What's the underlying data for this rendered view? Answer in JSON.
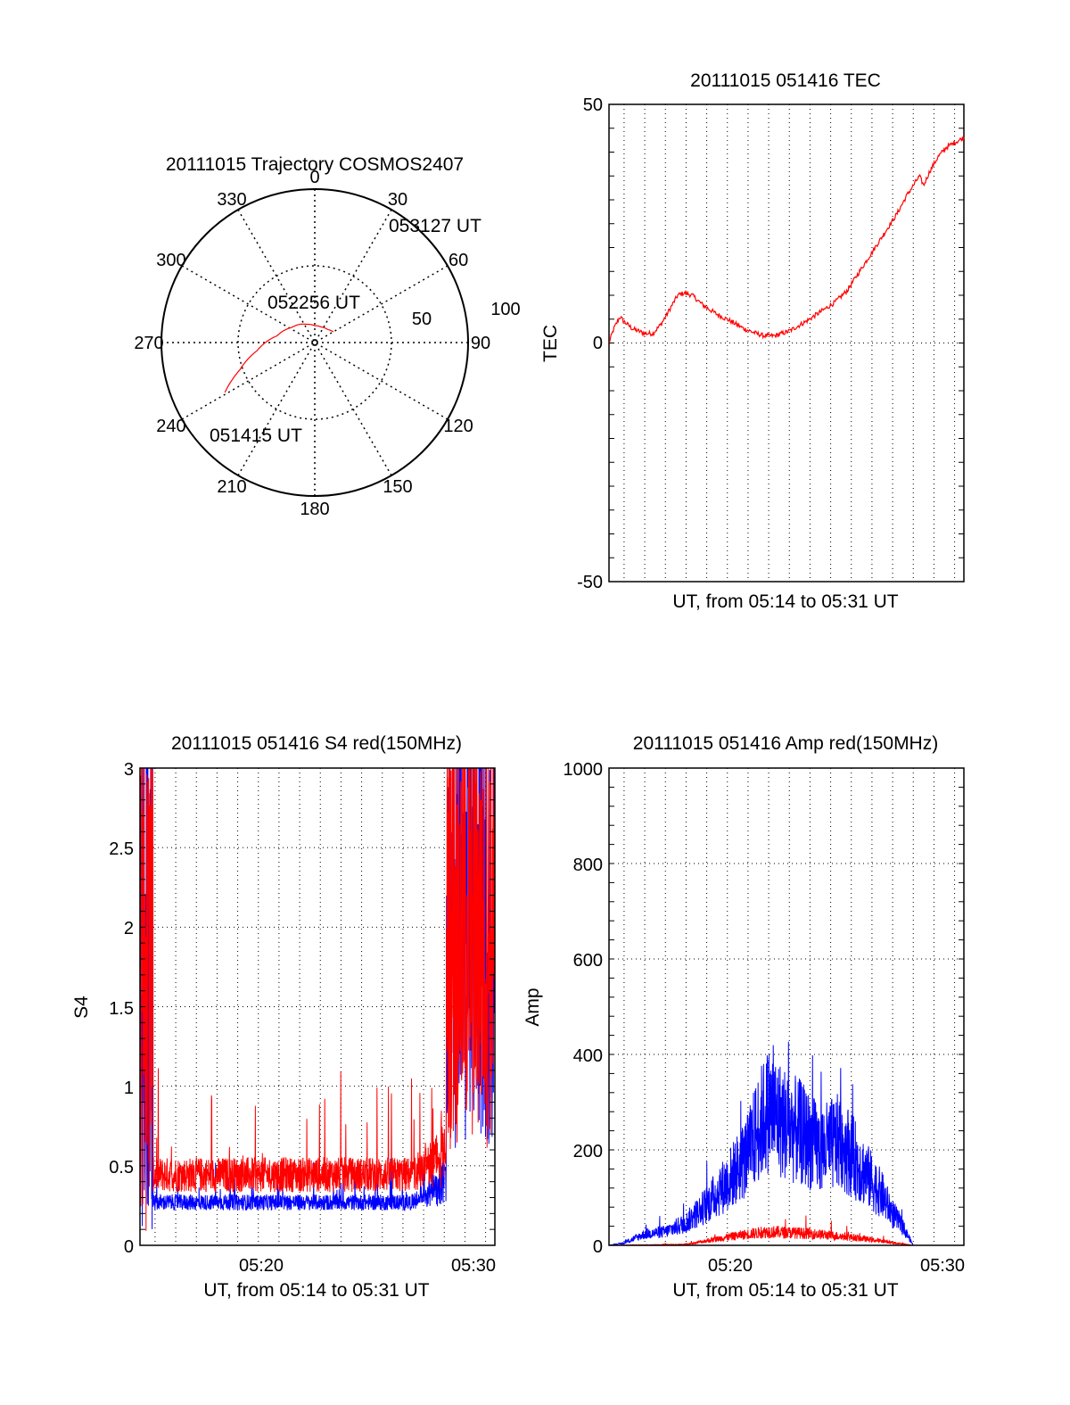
{
  "chart_data": [
    {
      "id": "trajectory",
      "type": "polar",
      "title": "20111015 Trajectory COSMOS2407",
      "azimuth_labels": [
        "0",
        "30",
        "60",
        "90",
        "120",
        "150",
        "180",
        "210",
        "240",
        "270",
        "300",
        "330"
      ],
      "radial_labels": [
        "50",
        "100"
      ],
      "trajectory": [
        {
          "az": 241,
          "r": 67
        },
        {
          "az": 250,
          "r": 52
        },
        {
          "az": 262,
          "r": 38
        },
        {
          "az": 280,
          "r": 25
        },
        {
          "az": 303,
          "r": 18
        },
        {
          "az": 336,
          "r": 13
        },
        {
          "az": 0,
          "r": 11
        },
        {
          "az": 22,
          "r": 11
        },
        {
          "az": 45,
          "r": 12
        },
        {
          "az": 60,
          "r": 14
        }
      ],
      "annotations": [
        {
          "text": "051415 UT",
          "az": 236,
          "r": 74
        },
        {
          "text": "052256 UT",
          "az": 335,
          "r": 28
        },
        {
          "text": "053127 UT",
          "az": 55,
          "r": 48
        }
      ],
      "trajectory_color": "#ff0000"
    },
    {
      "id": "tec",
      "type": "line",
      "title": "20111015 051416 TEC",
      "ylabel": "TEC",
      "xlabel": "UT, from 05:14 to 05:31 UT",
      "ylim": [
        -50,
        50
      ],
      "yticks": [
        "50",
        "0",
        "-50"
      ],
      "xlim_minutes": [
        14.27,
        31.45
      ],
      "grid": "dotted",
      "series": [
        {
          "color": "#ff0000",
          "points": [
            [
              14.27,
              0
            ],
            [
              14.5,
              3
            ],
            [
              14.8,
              5.5
            ],
            [
              15.0,
              4.5
            ],
            [
              15.4,
              3
            ],
            [
              16.0,
              2
            ],
            [
              16.4,
              2
            ],
            [
              16.8,
              4
            ],
            [
              17.2,
              7
            ],
            [
              17.6,
              10
            ],
            [
              17.9,
              10.5
            ],
            [
              18.3,
              10
            ],
            [
              18.8,
              8
            ],
            [
              19.5,
              6
            ],
            [
              20.2,
              4.5
            ],
            [
              20.8,
              3
            ],
            [
              21.4,
              2
            ],
            [
              21.8,
              1.5
            ],
            [
              22.3,
              1.5
            ],
            [
              23.0,
              2.5
            ],
            [
              23.8,
              4.5
            ],
            [
              24.5,
              6.5
            ],
            [
              25.2,
              8.5
            ],
            [
              25.8,
              11
            ],
            [
              26.4,
              15
            ],
            [
              27.0,
              19
            ],
            [
              27.6,
              23
            ],
            [
              28.2,
              27
            ],
            [
              28.7,
              31
            ],
            [
              29.0,
              33
            ],
            [
              29.3,
              35
            ],
            [
              29.5,
              33
            ],
            [
              29.8,
              36
            ],
            [
              30.2,
              39
            ],
            [
              30.6,
              41
            ],
            [
              31.0,
              42
            ],
            [
              31.45,
              43
            ]
          ]
        }
      ]
    },
    {
      "id": "s4",
      "type": "line",
      "title": "20111015 051416 S4 red(150MHz)",
      "ylabel": "S4",
      "xlabel": "UT, from 05:14 to 05:31 UT",
      "ylim": [
        0,
        3
      ],
      "yticks": [
        "0",
        "0.5",
        "1",
        "1.5",
        "2",
        "2.5",
        "3"
      ],
      "xticks": [
        "05:20",
        "05:30"
      ],
      "xlim_minutes": [
        14.27,
        31.45
      ],
      "grid": "dotted",
      "series": [
        {
          "color": "#0000ff",
          "level": 0.25,
          "spread": 0.1,
          "ends": "high"
        },
        {
          "color": "#ff0000",
          "level": 0.4,
          "spread": 0.22,
          "ends": "high"
        }
      ]
    },
    {
      "id": "amp",
      "type": "line",
      "title": "20111015 051416 Amp red(150MHz)",
      "ylabel": "Amp",
      "xlabel": "UT, from 05:14 to 05:31 UT",
      "ylim": [
        0,
        1000
      ],
      "yticks": [
        "0",
        "200",
        "400",
        "600",
        "800",
        "1000"
      ],
      "xticks": [
        "05:20",
        "05:30"
      ],
      "xlim_minutes": [
        14.27,
        31.45
      ],
      "grid": "dotted",
      "series": [
        {
          "color": "#0000ff",
          "envelope": [
            [
              14.27,
              0
            ],
            [
              15,
              5
            ],
            [
              16,
              25
            ],
            [
              17,
              30
            ],
            [
              18,
              50
            ],
            [
              19,
              90
            ],
            [
              20,
              140
            ],
            [
              21,
              200
            ],
            [
              21.5,
              260
            ],
            [
              22,
              300
            ],
            [
              22.5,
              280
            ],
            [
              23,
              260
            ],
            [
              23.5,
              250
            ],
            [
              24,
              230
            ],
            [
              24.5,
              210
            ],
            [
              25,
              220
            ],
            [
              25.5,
              230
            ],
            [
              26,
              200
            ],
            [
              26.5,
              170
            ],
            [
              27,
              140
            ],
            [
              27.5,
              110
            ],
            [
              28,
              70
            ],
            [
              28.5,
              40
            ],
            [
              29.0,
              0
            ],
            [
              31.45,
              0
            ]
          ]
        },
        {
          "color": "#ff0000",
          "envelope": [
            [
              14.27,
              0
            ],
            [
              18,
              2
            ],
            [
              19,
              10
            ],
            [
              20,
              18
            ],
            [
              21,
              25
            ],
            [
              22,
              30
            ],
            [
              23,
              28
            ],
            [
              24,
              26
            ],
            [
              25,
              22
            ],
            [
              26,
              18
            ],
            [
              27,
              12
            ],
            [
              28,
              6
            ],
            [
              29,
              0
            ],
            [
              31.45,
              0
            ]
          ]
        }
      ]
    }
  ]
}
